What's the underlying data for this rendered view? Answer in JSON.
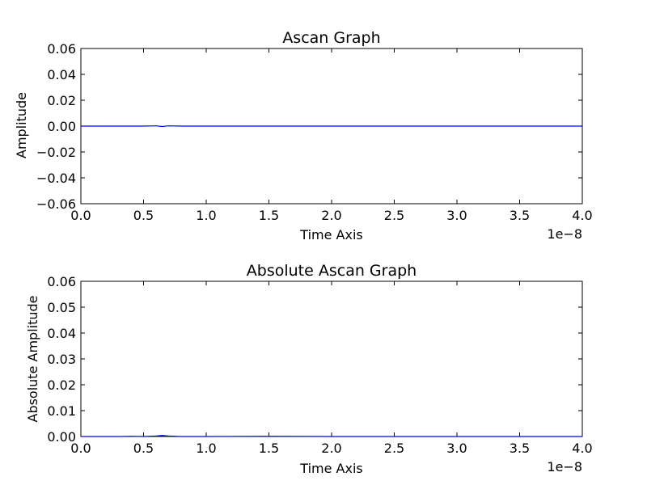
{
  "chart_data": [
    {
      "type": "line",
      "title": "Ascan Graph",
      "xlabel": "Time Axis",
      "ylabel": "Amplitude",
      "x_offset_text": "1e−8",
      "xlim": [
        0.0,
        4.0
      ],
      "ylim": [
        -0.06,
        0.06
      ],
      "xticks": [
        "0.0",
        "0.5",
        "1.0",
        "1.5",
        "2.0",
        "2.5",
        "3.0",
        "3.5",
        "4.0"
      ],
      "yticks": [
        "−0.06",
        "−0.04",
        "−0.02",
        "0.00",
        "0.02",
        "0.04",
        "0.06"
      ],
      "grid": false,
      "series": [
        {
          "color": "#0000ff",
          "x": [
            0.0,
            0.5,
            0.6,
            0.65,
            0.7,
            0.8,
            1.0,
            1.5,
            2.0,
            2.5,
            3.0,
            3.5,
            4.0
          ],
          "y": [
            0.0,
            0.0,
            0.0002,
            -0.0003,
            0.0002,
            0.0,
            0.0,
            0.0,
            0.0,
            0.0,
            0.0,
            0.0,
            0.0
          ]
        }
      ]
    },
    {
      "type": "line",
      "title": "Absolute Ascan Graph",
      "xlabel": "Time Axis",
      "ylabel": "Absolute Amplitude",
      "x_offset_text": "1e−8",
      "xlim": [
        0.0,
        4.0
      ],
      "ylim": [
        0.0,
        0.06
      ],
      "xticks": [
        "0.0",
        "0.5",
        "1.0",
        "1.5",
        "2.0",
        "2.5",
        "3.0",
        "3.5",
        "4.0"
      ],
      "yticks": [
        "0.00",
        "0.01",
        "0.02",
        "0.03",
        "0.04",
        "0.05",
        "0.06"
      ],
      "grid": false,
      "series": [
        {
          "color": "#0000ff",
          "x": [
            0.0,
            0.3,
            0.4,
            0.5,
            0.6,
            0.65,
            0.7,
            0.8,
            1.0,
            1.5,
            2.0,
            2.5,
            3.0,
            3.5,
            4.0
          ],
          "y": [
            0.0,
            0.0,
            0.0001,
            0.0,
            0.0002,
            0.0004,
            0.0002,
            0.0,
            0.0,
            0.0001,
            0.0,
            0.0,
            0.0,
            0.0,
            0.0
          ]
        }
      ]
    }
  ]
}
